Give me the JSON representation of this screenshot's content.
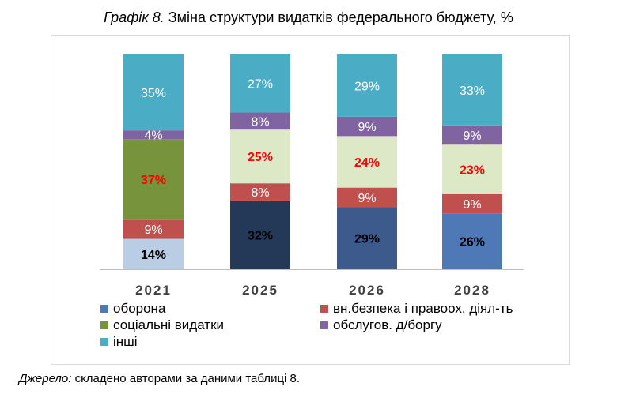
{
  "title": {
    "lead": "Графік 8.",
    "text": "Зміна структури видатків федерального бюджету, %"
  },
  "source": {
    "lead": "Джерело:",
    "text": "складено авторами за даними таблиці 8."
  },
  "chart_data": {
    "type": "stacked-bar",
    "stacking": "percent",
    "categories": [
      "2021",
      "2025",
      "2026",
      "2028"
    ],
    "ylim": [
      0,
      100
    ],
    "legend_position": "bottom",
    "grid": false,
    "series": [
      {
        "name": "оборона",
        "values": [
          14,
          32,
          29,
          26
        ],
        "labels": [
          "14%",
          "32%",
          "29%",
          "26%"
        ],
        "colors": [
          "#b9cde5",
          "#243858",
          "#3c5a8c",
          "#4f79b6"
        ],
        "label_colors": [
          "#000000",
          "#000000",
          "#000000",
          "#000000"
        ]
      },
      {
        "name": "вн.безпека і правоох. діял-ть",
        "values": [
          9,
          8,
          9,
          9
        ],
        "labels": [
          "9%",
          "8%",
          "9%",
          "9%"
        ],
        "colors": [
          "#c0504d",
          "#c0504d",
          "#c0504d",
          "#c0504d"
        ],
        "label_colors": [
          "#ffffff",
          "#ffffff",
          "#ffffff",
          "#ffffff"
        ]
      },
      {
        "name": "соціальні видатки",
        "values": [
          37,
          25,
          24,
          23
        ],
        "labels": [
          "37%",
          "25%",
          "24%",
          "23%"
        ],
        "colors": [
          "#77933c",
          "#dde8c6",
          "#dde8c6",
          "#dde8c6"
        ],
        "label_colors": [
          "#ff0000",
          "#ff0000",
          "#ff0000",
          "#ff0000"
        ]
      },
      {
        "name": "обслугов. д/боргу",
        "values": [
          4,
          8,
          9,
          9
        ],
        "labels": [
          "4%",
          "8%",
          "9%",
          "9%"
        ],
        "colors": [
          "#8064a2",
          "#8064a2",
          "#8064a2",
          "#8064a2"
        ],
        "label_colors": [
          "#ffffff",
          "#ffffff",
          "#ffffff",
          "#ffffff"
        ]
      },
      {
        "name": "інші",
        "values": [
          35,
          27,
          29,
          33
        ],
        "labels": [
          "35%",
          "27%",
          "29%",
          "33%"
        ],
        "colors": [
          "#4bacc6",
          "#4bacc6",
          "#4bacc6",
          "#4bacc6"
        ],
        "label_colors": [
          "#ffffff",
          "#ffffff",
          "#ffffff",
          "#ffffff"
        ]
      }
    ],
    "legend": [
      {
        "name": "оборона",
        "color": "#4f79b6"
      },
      {
        "name": "вн.безпека і правоох. діял-ть",
        "color": "#c0504d"
      },
      {
        "name": "соціальні видатки",
        "color": "#77933c"
      },
      {
        "name": "обслугов. д/боргу",
        "color": "#8064a2"
      },
      {
        "name": "інші",
        "color": "#4bacc6"
      }
    ]
  }
}
